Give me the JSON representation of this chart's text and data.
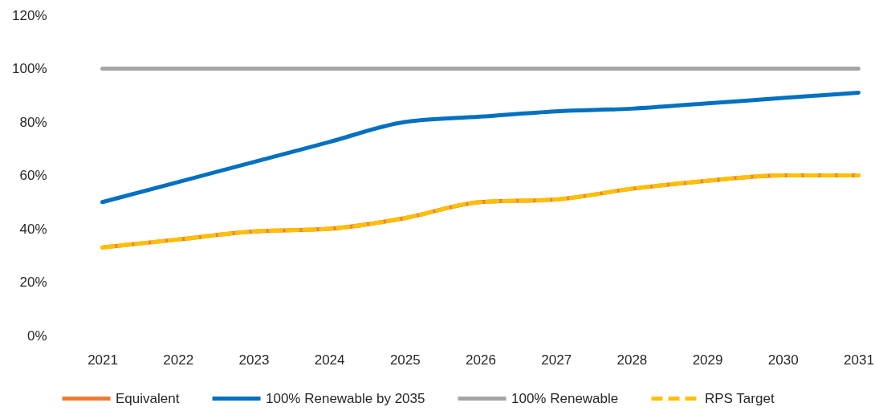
{
  "chart_data": {
    "type": "line",
    "categories": [
      "2021",
      "2022",
      "2023",
      "2024",
      "2025",
      "2026",
      "2027",
      "2028",
      "2029",
      "2030",
      "2031"
    ],
    "ylim": [
      0,
      120
    ],
    "yticks": [
      {
        "value": 0,
        "label": "0%"
      },
      {
        "value": 20,
        "label": "20%"
      },
      {
        "value": 40,
        "label": "40%"
      },
      {
        "value": 60,
        "label": "60%"
      },
      {
        "value": 80,
        "label": "80%"
      },
      {
        "value": 100,
        "label": "100%"
      },
      {
        "value": 120,
        "label": "120%"
      }
    ],
    "grid": false,
    "legend": "bottom",
    "marker": "none",
    "series": [
      {
        "name": "Equivalent",
        "color": "#ed7d31",
        "values": [
          33,
          36,
          39,
          40,
          44,
          50,
          51,
          55,
          58,
          60,
          60
        ]
      },
      {
        "name": "100% Renewable by 2035",
        "color": "#0070c0",
        "values": [
          50,
          57.5,
          65,
          72.5,
          80,
          82,
          84,
          85,
          87,
          89,
          91
        ]
      },
      {
        "name": "100% Renewable",
        "color": "#a5a5a5",
        "values": [
          100,
          100,
          100,
          100,
          100,
          100,
          100,
          100,
          100,
          100,
          100
        ]
      },
      {
        "name": "RPS Target",
        "color": "#ffc000",
        "line_style": "dashed",
        "values": [
          33,
          36,
          39,
          40,
          44,
          50,
          51,
          55,
          58,
          60,
          60
        ]
      }
    ]
  }
}
